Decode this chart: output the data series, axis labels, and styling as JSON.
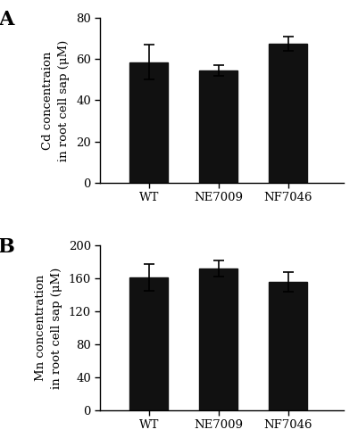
{
  "panel_A": {
    "categories": [
      "WT",
      "NE7009",
      "NF7046"
    ],
    "values": [
      58.5,
      54.5,
      67.5
    ],
    "errors": [
      8.5,
      2.5,
      3.5
    ],
    "ylabel": "Cd concentraion\nin root cell sap (μM)",
    "ylim": [
      0,
      80
    ],
    "yticks": [
      0,
      20,
      40,
      60,
      80
    ],
    "label": "A"
  },
  "panel_B": {
    "categories": [
      "WT",
      "NE7009",
      "NF7046"
    ],
    "values": [
      161,
      172,
      156
    ],
    "errors": [
      16,
      10,
      12
    ],
    "ylabel": "Mn concentration\nin root cell sap (μM)",
    "ylim": [
      0,
      200
    ],
    "yticks": [
      0,
      40,
      80,
      120,
      160,
      200
    ],
    "label": "B"
  },
  "bar_color": "#111111",
  "bar_width": 0.55,
  "bar_positions": [
    1,
    2,
    3
  ],
  "xlim": [
    0.3,
    3.8
  ],
  "capsize": 4,
  "background_color": "#ffffff",
  "fontsize_label": 9.5,
  "fontsize_tick": 9.5,
  "fontsize_panel": 16,
  "font_family": "DejaVu Serif"
}
